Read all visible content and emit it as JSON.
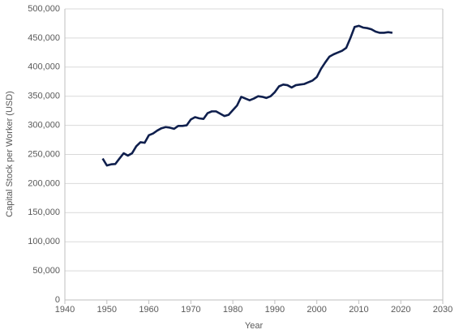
{
  "chart_data": {
    "type": "line",
    "x_label": "Year",
    "y_label": "Capital Stock per Worker (USD)",
    "x": [
      1949,
      1950,
      1951,
      1952,
      1953,
      1954,
      1955,
      1956,
      1957,
      1958,
      1959,
      1960,
      1961,
      1962,
      1963,
      1964,
      1965,
      1966,
      1967,
      1968,
      1969,
      1970,
      1971,
      1972,
      1973,
      1974,
      1975,
      1976,
      1977,
      1978,
      1979,
      1980,
      1981,
      1982,
      1983,
      1984,
      1985,
      1986,
      1987,
      1988,
      1989,
      1990,
      1991,
      1992,
      1993,
      1994,
      1995,
      1996,
      1997,
      1998,
      1999,
      2000,
      2001,
      2002,
      2003,
      2004,
      2005,
      2006,
      2007,
      2008,
      2009,
      2010,
      2011,
      2012,
      2013,
      2014,
      2015,
      2016,
      2017,
      2018
    ],
    "series": [
      {
        "color": "#0f1f4d",
        "values": [
          243000,
          231000,
          233000,
          233500,
          243000,
          252000,
          248000,
          252000,
          264000,
          271000,
          270000,
          283000,
          286000,
          291000,
          295000,
          297000,
          296000,
          294000,
          299000,
          299000,
          300000,
          310000,
          314000,
          312000,
          311000,
          321000,
          324000,
          324000,
          320000,
          316000,
          318000,
          326000,
          334000,
          349000,
          346000,
          343000,
          346000,
          350000,
          349000,
          347000,
          350000,
          357000,
          367000,
          370000,
          369000,
          365000,
          369000,
          370000,
          371000,
          374000,
          377000,
          383000,
          397000,
          408000,
          418000,
          422000,
          425000,
          428000,
          433000,
          450000,
          469000,
          471000,
          468000,
          467000,
          465000,
          461000,
          459000,
          459000,
          460000,
          459000
        ]
      }
    ],
    "xlim": [
      1940,
      2030
    ],
    "xticks": [
      1940,
      1950,
      1960,
      1970,
      1980,
      1990,
      2000,
      2010,
      2020,
      2030
    ],
    "ylim": [
      0,
      500000
    ],
    "yticks": [
      0,
      {
        "value": 50000,
        "label": "50,000"
      },
      {
        "value": 100000,
        "label": "100,000"
      },
      {
        "value": 150000,
        "label": "150,000"
      },
      {
        "value": 200000,
        "label": "200,000"
      },
      {
        "value": 250000,
        "label": "250,000"
      },
      {
        "value": 300000,
        "label": "300,000"
      },
      {
        "value": 350000,
        "label": "350,000"
      },
      {
        "value": 400000,
        "label": "400,000"
      },
      {
        "value": 450000,
        "label": "450,000"
      },
      {
        "value": 500000,
        "label": "500,000"
      }
    ],
    "grid": true
  }
}
